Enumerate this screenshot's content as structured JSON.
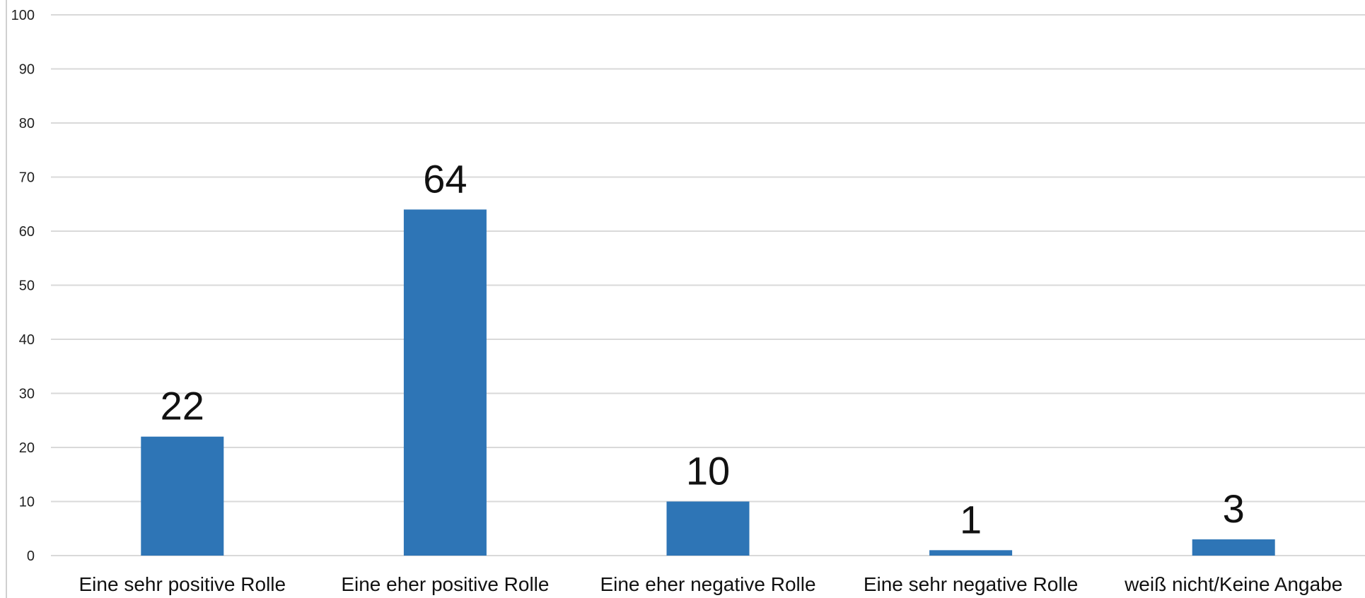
{
  "chart_data": {
    "type": "bar",
    "categories": [
      "Eine sehr positive Rolle",
      "Eine eher positive Rolle",
      "Eine eher negative Rolle",
      "Eine sehr negative Rolle",
      "weiß nicht/Keine Angabe"
    ],
    "values": [
      22,
      64,
      10,
      1,
      3
    ],
    "data_labels": [
      "22",
      "64",
      "10",
      "1",
      "3"
    ],
    "title": "",
    "xlabel": "",
    "ylabel": "",
    "ylim": [
      0,
      100
    ],
    "yticks": [
      0,
      10,
      20,
      30,
      40,
      50,
      60,
      70,
      80,
      90,
      100
    ],
    "ytick_labels": [
      "0",
      "10",
      "20",
      "30",
      "40",
      "50",
      "60",
      "70",
      "80",
      "90",
      "100"
    ],
    "grid": true,
    "legend": "none",
    "bar_color": "#2e75b6"
  }
}
